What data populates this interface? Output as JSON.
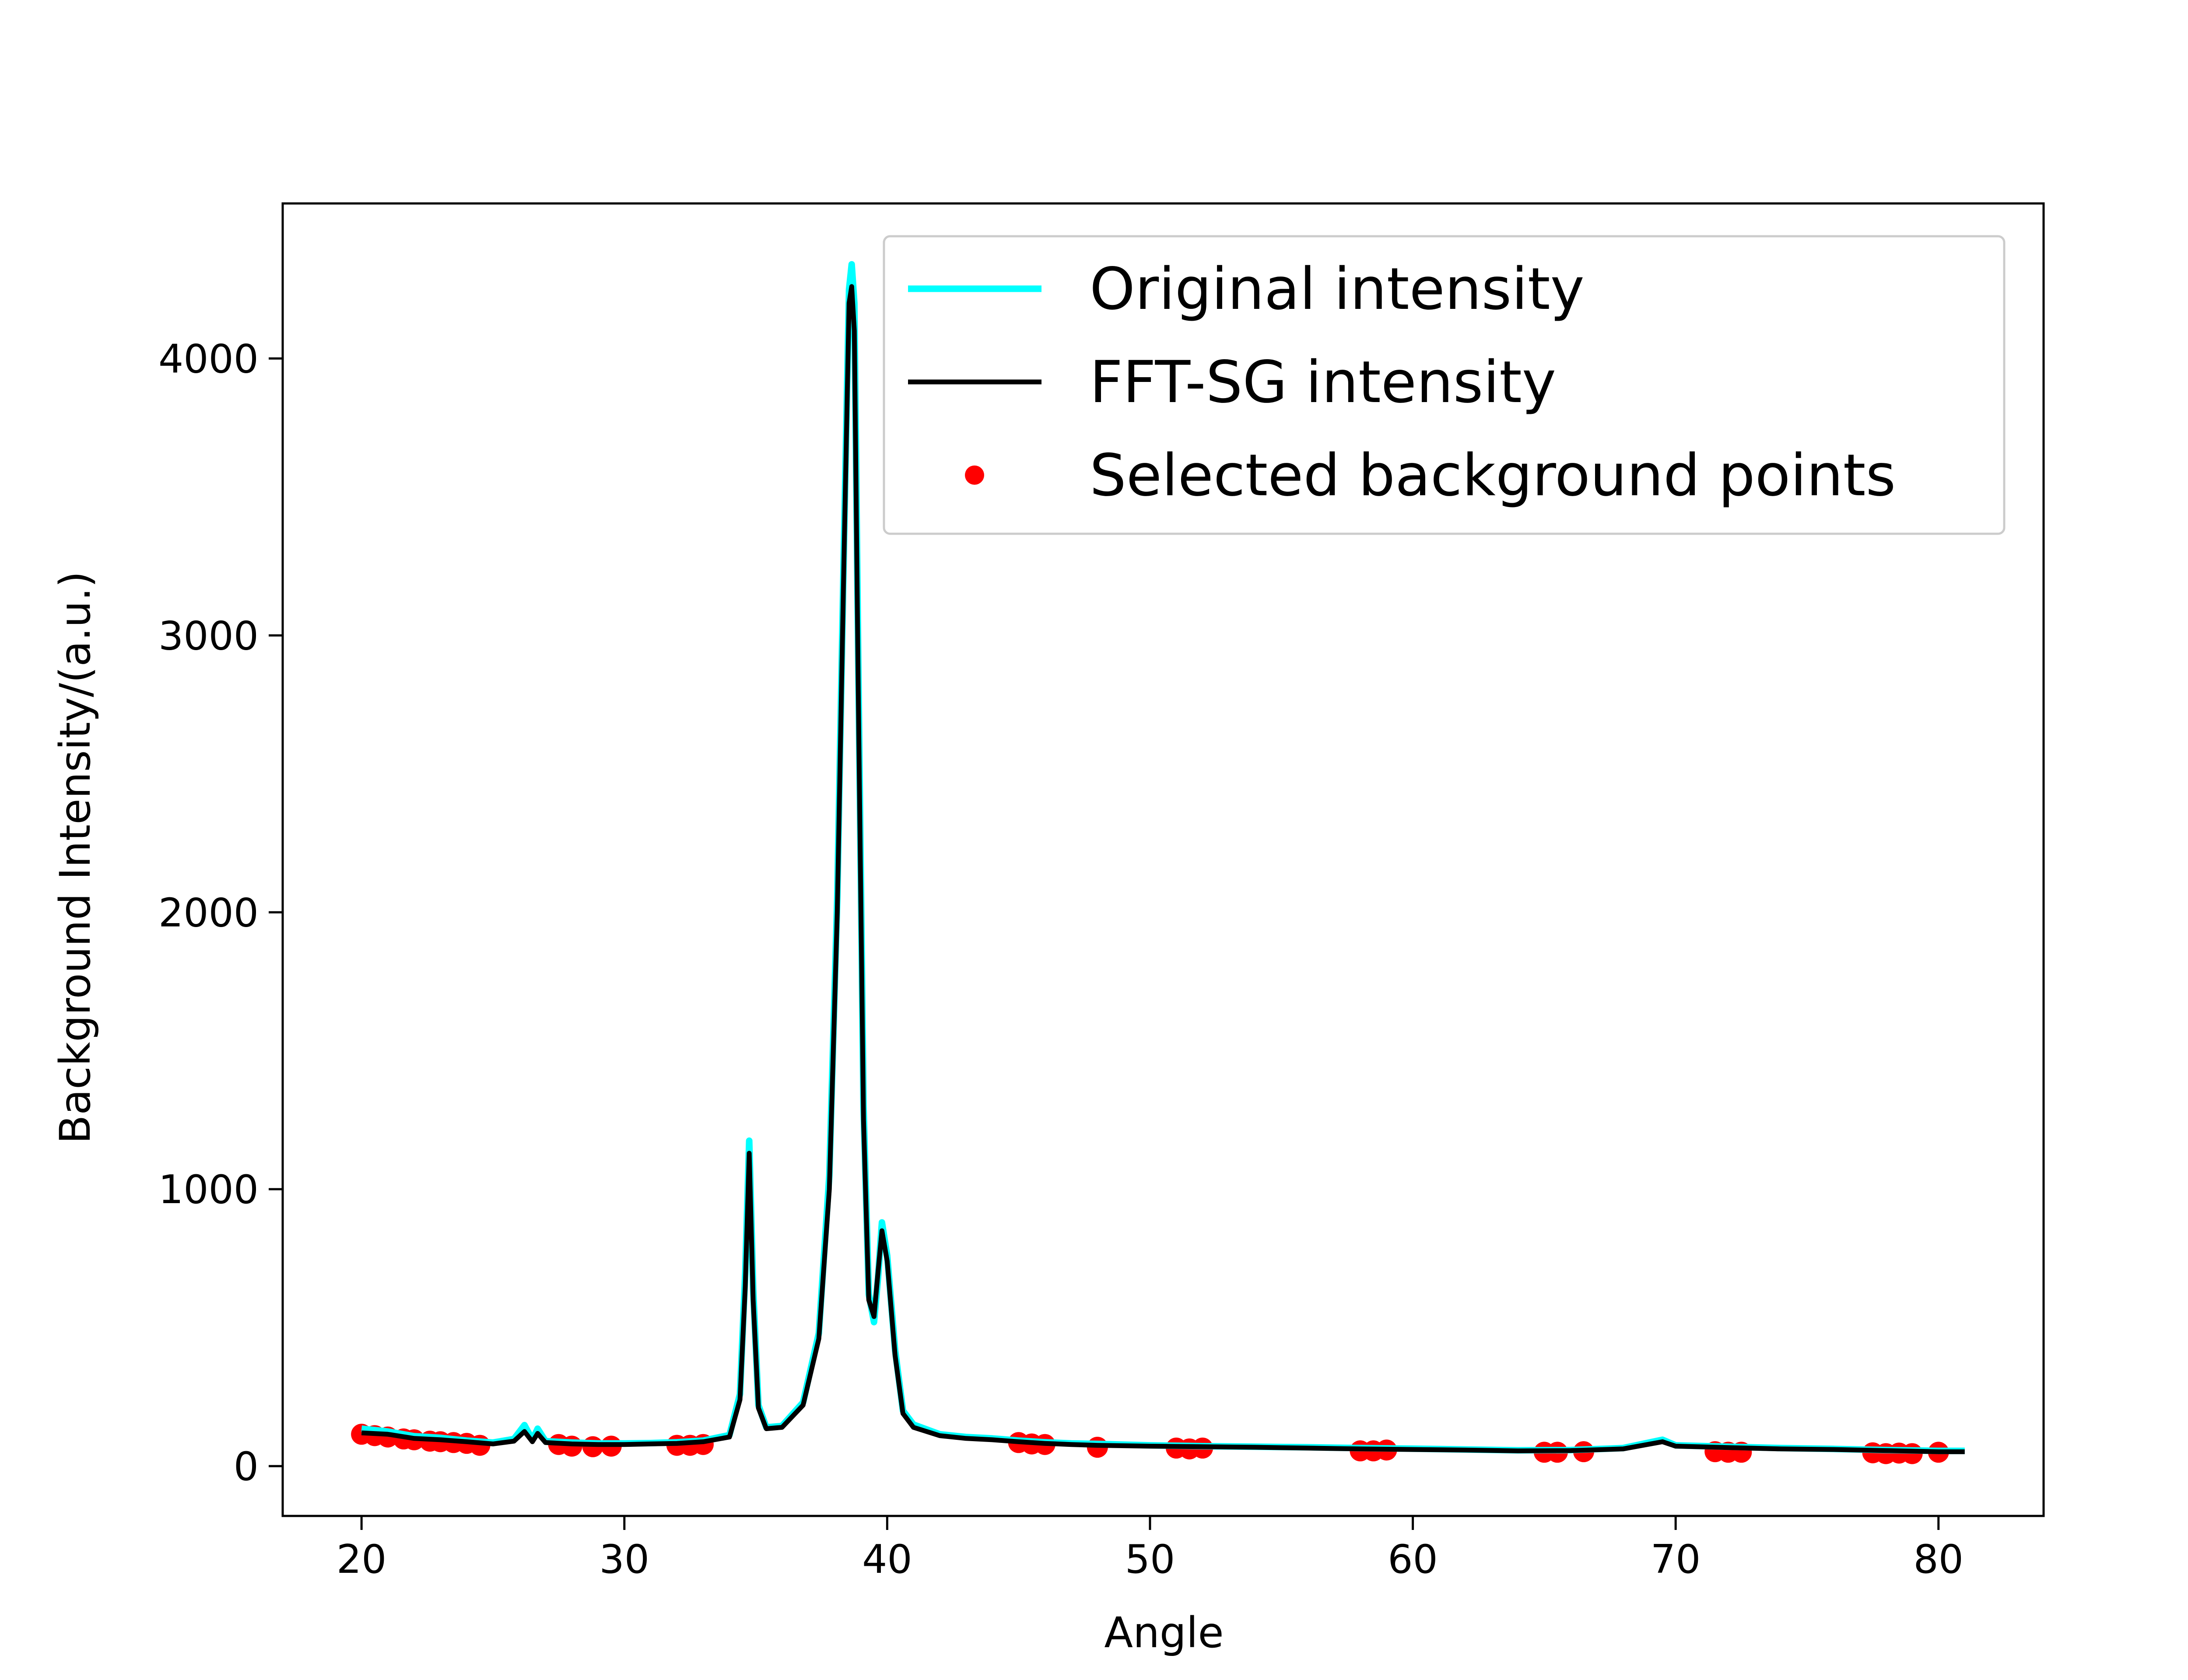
{
  "chart_data": {
    "type": "line",
    "title": "",
    "xlabel": "Angle",
    "ylabel": "Background Intensity/(a.u.)",
    "xlim": [
      17,
      84
    ],
    "ylim": [
      -180,
      4560
    ],
    "xticks": [
      20,
      30,
      40,
      50,
      60,
      70,
      80
    ],
    "yticks": [
      0,
      1000,
      2000,
      3000,
      4000
    ],
    "grid": false,
    "legend_position": "top-right",
    "colors": {
      "original": "#00ffff",
      "fft_sg": "#000000",
      "background_points": "#ff0000"
    },
    "series": [
      {
        "name": "Original intensity",
        "kind": "line",
        "x": [
          20,
          21,
          22,
          23,
          24,
          25,
          25.8,
          26.2,
          26.5,
          26.7,
          27,
          28,
          29,
          30,
          31,
          32,
          33,
          34,
          34.4,
          34.6,
          34.75,
          34.9,
          35.1,
          35.4,
          36,
          36.8,
          37.4,
          37.8,
          38.1,
          38.35,
          38.55,
          38.65,
          38.75,
          38.9,
          39.1,
          39.3,
          39.5,
          39.65,
          39.8,
          40,
          40.3,
          40.6,
          41,
          42,
          43,
          44,
          45,
          46,
          47,
          48,
          50,
          52,
          54,
          56,
          58,
          60,
          62,
          64,
          66,
          68,
          69.5,
          70,
          72,
          74,
          76,
          78,
          80,
          81
        ],
        "y": [
          135,
          125,
          108,
          102,
          92,
          85,
          98,
          148,
          95,
          135,
          90,
          85,
          82,
          82,
          83,
          86,
          92,
          112,
          260,
          700,
          1175,
          640,
          220,
          140,
          145,
          230,
          480,
          1050,
          2050,
          3300,
          4250,
          4340,
          4200,
          2900,
          1300,
          620,
          520,
          680,
          880,
          760,
          420,
          200,
          150,
          115,
          105,
          100,
          92,
          86,
          82,
          80,
          75,
          72,
          70,
          68,
          65,
          63,
          60,
          57,
          58,
          65,
          95,
          75,
          70,
          65,
          62,
          58,
          55,
          55
        ]
      },
      {
        "name": "FFT-SG intensity",
        "kind": "line",
        "x": [
          20,
          21,
          22,
          23,
          24,
          25,
          25.8,
          26.2,
          26.5,
          26.7,
          27,
          28,
          29,
          30,
          31,
          32,
          33,
          34,
          34.4,
          34.6,
          34.75,
          34.9,
          35.1,
          35.4,
          36,
          36.8,
          37.4,
          37.8,
          38.1,
          38.35,
          38.55,
          38.65,
          38.75,
          38.9,
          39.1,
          39.3,
          39.5,
          39.65,
          39.8,
          40,
          40.3,
          40.6,
          41,
          42,
          43,
          44,
          45,
          46,
          47,
          48,
          50,
          52,
          54,
          56,
          58,
          60,
          62,
          64,
          66,
          68,
          69.5,
          70,
          72,
          74,
          76,
          78,
          80,
          81
        ],
        "y": [
          120,
          115,
          100,
          95,
          88,
          80,
          90,
          125,
          88,
          118,
          85,
          80,
          78,
          78,
          80,
          82,
          88,
          105,
          240,
          650,
          1130,
          600,
          210,
          135,
          140,
          220,
          460,
          1000,
          2000,
          3250,
          4200,
          4260,
          4100,
          2800,
          1250,
          600,
          540,
          700,
          850,
          740,
          400,
          190,
          140,
          110,
          100,
          95,
          88,
          82,
          78,
          75,
          72,
          70,
          68,
          65,
          62,
          60,
          58,
          55,
          56,
          62,
          88,
          72,
          67,
          62,
          60,
          56,
          52,
          52
        ]
      },
      {
        "name": "Selected background points",
        "kind": "scatter",
        "x": [
          20,
          20.5,
          21,
          21.6,
          22,
          22.6,
          23,
          23.5,
          24,
          24.5,
          27.5,
          28,
          28.8,
          29.5,
          32,
          32.5,
          33,
          45,
          45.5,
          46,
          48,
          51,
          51.5,
          52,
          58,
          58.5,
          59,
          65,
          65.5,
          66.5,
          71.5,
          72,
          72.5,
          77.5,
          78,
          78.5,
          79,
          80
        ],
        "y": [
          115,
          110,
          105,
          98,
          95,
          90,
          88,
          85,
          82,
          75,
          78,
          72,
          70,
          72,
          75,
          75,
          78,
          85,
          80,
          78,
          68,
          65,
          62,
          65,
          55,
          55,
          58,
          50,
          50,
          52,
          52,
          50,
          50,
          48,
          45,
          47,
          45,
          50
        ]
      }
    ]
  }
}
